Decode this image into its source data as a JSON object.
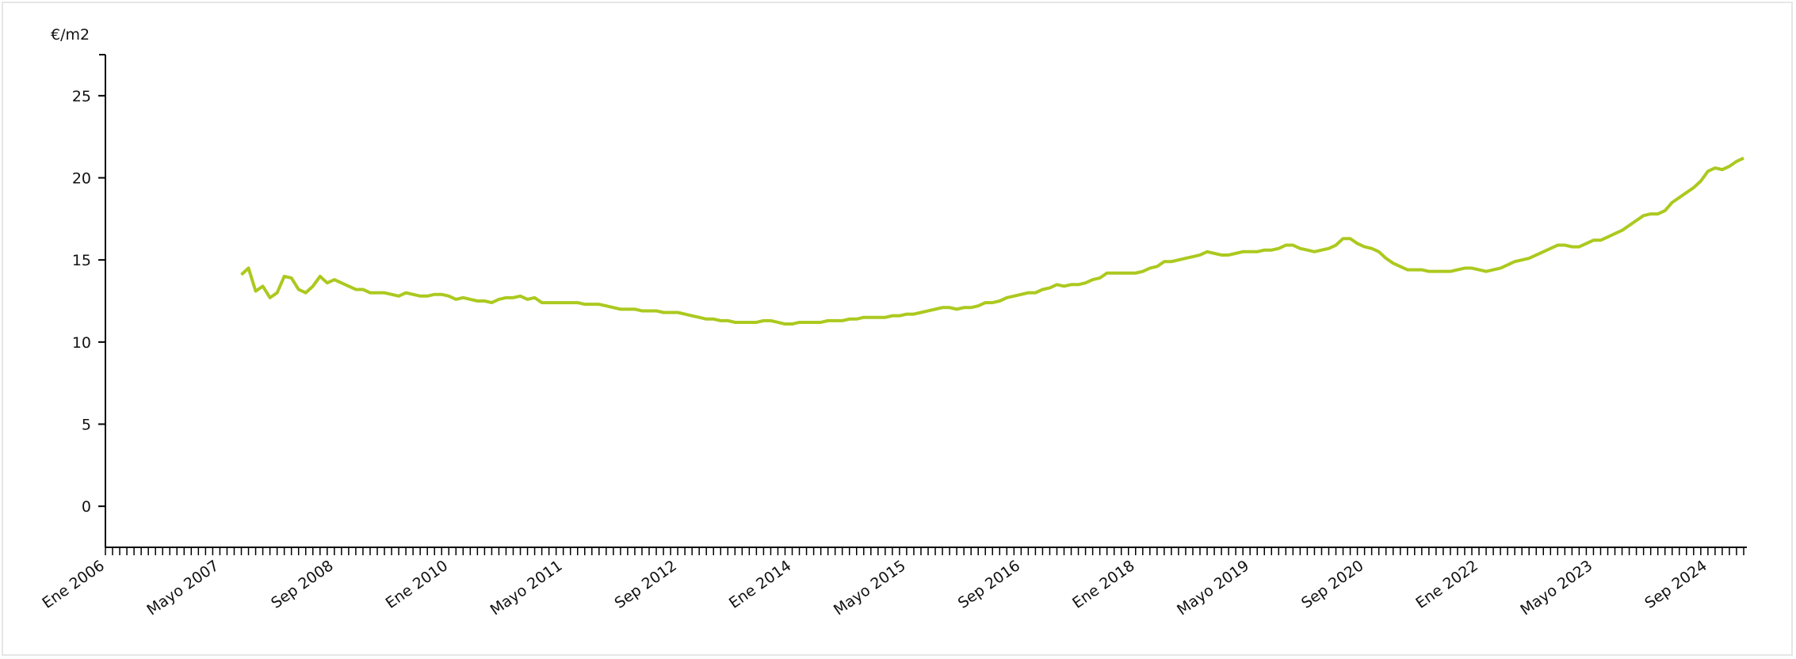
{
  "chart_data": {
    "type": "line",
    "ylabel": "€/m2",
    "color": "#abc91f",
    "ylim": [
      -2.5,
      27.5
    ],
    "yticks": [
      0,
      5,
      10,
      15,
      20,
      25
    ],
    "categories": [
      "Ene 2006",
      null,
      null,
      null,
      null,
      null,
      null,
      null,
      null,
      null,
      null,
      null,
      null,
      null,
      null,
      null,
      "Mayo 2007",
      null,
      null,
      null,
      null,
      null,
      null,
      null,
      null,
      null,
      null,
      null,
      null,
      null,
      null,
      null,
      "Sep 2008",
      null,
      null,
      null,
      null,
      null,
      null,
      null,
      null,
      null,
      null,
      null,
      null,
      null,
      null,
      null,
      "Ene 2010",
      null,
      null,
      null,
      null,
      null,
      null,
      null,
      null,
      null,
      null,
      null,
      null,
      null,
      null,
      null,
      "Mayo 2011",
      null,
      null,
      null,
      null,
      null,
      null,
      null,
      null,
      null,
      null,
      null,
      null,
      null,
      null,
      null,
      "Sep 2012",
      null,
      null,
      null,
      null,
      null,
      null,
      null,
      null,
      null,
      null,
      null,
      null,
      null,
      null,
      null,
      "Ene 2014",
      null,
      null,
      null,
      null,
      null,
      null,
      null,
      null,
      null,
      null,
      null,
      null,
      null,
      null,
      null,
      "Mayo 2015",
      null,
      null,
      null,
      null,
      null,
      null,
      null,
      null,
      null,
      null,
      null,
      null,
      null,
      null,
      null,
      "Sep 2016",
      null,
      null,
      null,
      null,
      null,
      null,
      null,
      null,
      null,
      null,
      null,
      null,
      null,
      null,
      null,
      "Ene 2018",
      null,
      null,
      null,
      null,
      null,
      null,
      null,
      null,
      null,
      null,
      null,
      null,
      null,
      null,
      null,
      "Mayo 2019",
      null,
      null,
      null,
      null,
      null,
      null,
      null,
      null,
      null,
      null,
      null,
      null,
      null,
      null,
      null,
      "Sep 2020",
      null,
      null,
      null,
      null,
      null,
      null,
      null,
      null,
      null,
      null,
      null,
      null,
      null,
      null,
      null,
      "Ene 2022",
      null,
      null,
      null,
      null,
      null,
      null,
      null,
      null,
      null,
      null,
      null,
      null,
      null,
      null,
      null,
      "Mayo 2023",
      null,
      null,
      null,
      null,
      null,
      null,
      null,
      null,
      null,
      null,
      null,
      null,
      null,
      null,
      null,
      "Sep 2024",
      null,
      null,
      null,
      null,
      null
    ],
    "values": [
      null,
      null,
      null,
      null,
      null,
      null,
      null,
      null,
      null,
      null,
      null,
      null,
      null,
      null,
      null,
      null,
      null,
      null,
      null,
      14.1,
      14.5,
      13.1,
      13.4,
      12.7,
      13.0,
      14.0,
      13.9,
      13.2,
      13.0,
      13.4,
      14.0,
      13.6,
      13.8,
      13.6,
      13.4,
      13.2,
      13.2,
      13.0,
      13.0,
      13.0,
      12.9,
      12.8,
      13.0,
      12.9,
      12.8,
      12.8,
      12.9,
      12.9,
      12.8,
      12.6,
      12.7,
      12.6,
      12.5,
      12.5,
      12.4,
      12.6,
      12.7,
      12.7,
      12.8,
      12.6,
      12.7,
      12.4,
      12.4,
      12.4,
      12.4,
      12.4,
      12.4,
      12.3,
      12.3,
      12.3,
      12.2,
      12.1,
      12.0,
      12.0,
      12.0,
      11.9,
      11.9,
      11.9,
      11.8,
      11.8,
      11.8,
      11.7,
      11.6,
      11.5,
      11.4,
      11.4,
      11.3,
      11.3,
      11.2,
      11.2,
      11.2,
      11.2,
      11.3,
      11.3,
      11.2,
      11.1,
      11.1,
      11.2,
      11.2,
      11.2,
      11.2,
      11.3,
      11.3,
      11.3,
      11.4,
      11.4,
      11.5,
      11.5,
      11.5,
      11.5,
      11.6,
      11.6,
      11.7,
      11.7,
      11.8,
      11.9,
      12.0,
      12.1,
      12.1,
      12.0,
      12.1,
      12.1,
      12.2,
      12.4,
      12.4,
      12.5,
      12.7,
      12.8,
      12.9,
      13.0,
      13.0,
      13.2,
      13.3,
      13.5,
      13.4,
      13.5,
      13.5,
      13.6,
      13.8,
      13.9,
      14.2,
      14.2,
      14.2,
      14.2,
      14.2,
      14.3,
      14.5,
      14.6,
      14.9,
      14.9,
      15.0,
      15.1,
      15.2,
      15.3,
      15.5,
      15.4,
      15.3,
      15.3,
      15.4,
      15.5,
      15.5,
      15.5,
      15.6,
      15.6,
      15.7,
      15.9,
      15.9,
      15.7,
      15.6,
      15.5,
      15.6,
      15.7,
      15.9,
      16.3,
      16.3,
      16.0,
      15.8,
      15.7,
      15.5,
      15.1,
      14.8,
      14.6,
      14.4,
      14.4,
      14.4,
      14.3,
      14.3,
      14.3,
      14.3,
      14.4,
      14.5,
      14.5,
      14.4,
      14.3,
      14.4,
      14.5,
      14.7,
      14.9,
      15.0,
      15.1,
      15.3,
      15.5,
      15.7,
      15.9,
      15.9,
      15.8,
      15.8,
      16.0,
      16.2,
      16.2,
      16.4,
      16.6,
      16.8,
      17.1,
      17.4,
      17.7,
      17.8,
      17.8,
      18.0,
      18.5,
      18.8,
      19.1,
      19.4,
      19.8,
      20.4,
      20.6,
      20.5,
      20.7,
      21.0,
      21.2
    ]
  }
}
